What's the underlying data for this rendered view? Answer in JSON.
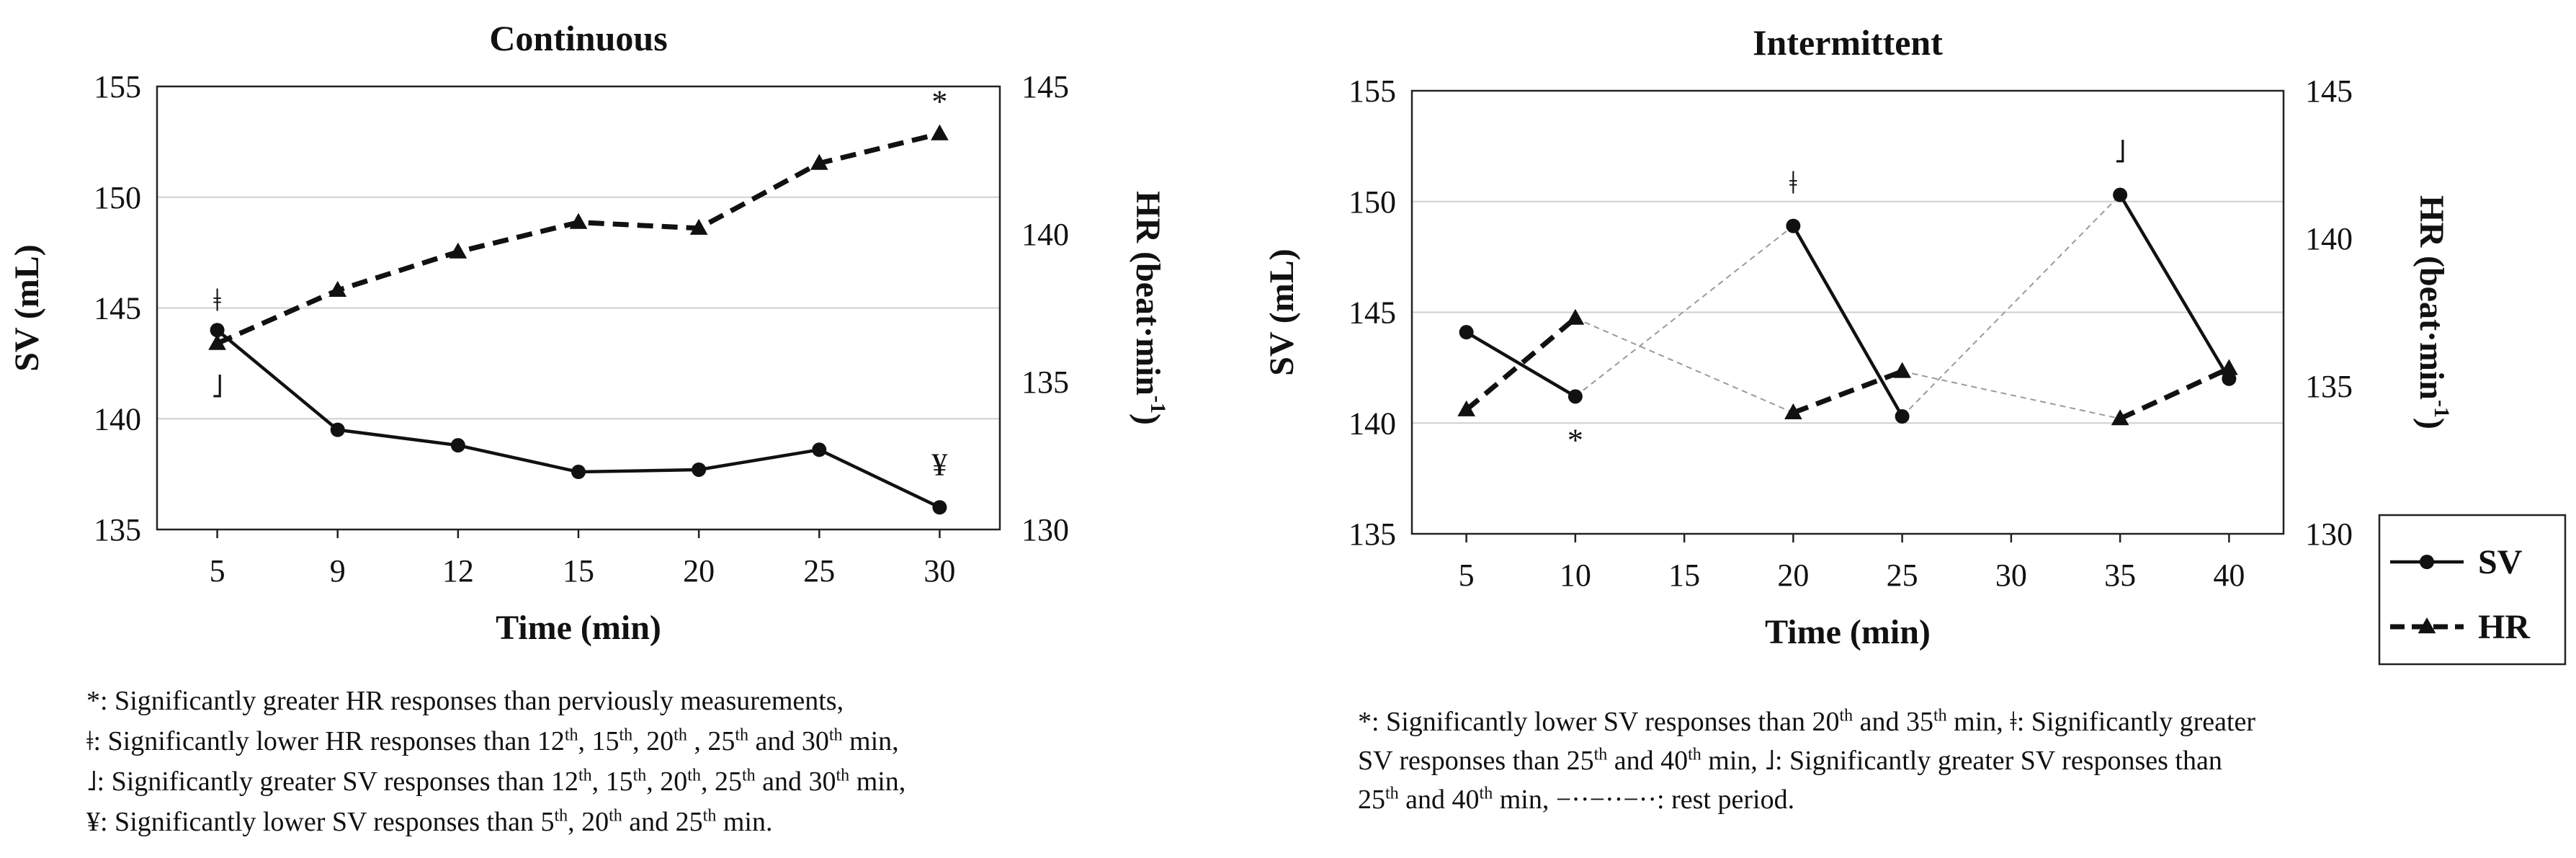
{
  "chart_data": [
    {
      "type": "line",
      "title": "Continuous",
      "xlabel": "Time (min)",
      "ylabel_left": "SV (mL)",
      "ylabel_right_main": "HR (beat·min",
      "ylabel_right_sup": "-1",
      "ylabel_right_end": ")",
      "categories": [
        "5",
        "9",
        "12",
        "15",
        "20",
        "25",
        "30"
      ],
      "ylim_left": [
        135,
        155
      ],
      "yticks_left": [
        135,
        140,
        145,
        150,
        155
      ],
      "ylim_right": [
        130,
        145
      ],
      "yticks_right": [
        130,
        135,
        140,
        145
      ],
      "grid": "horizontal",
      "series": [
        {
          "name": "SV",
          "axis": "left",
          "style": "solid",
          "marker": "circle",
          "values": [
            144.0,
            139.5,
            138.8,
            137.6,
            137.7,
            138.6,
            136.0
          ]
        },
        {
          "name": "HR",
          "axis": "right",
          "style": "dashed",
          "marker": "triangle",
          "values": [
            136.3,
            138.1,
            139.4,
            140.4,
            140.2,
            142.4,
            143.4
          ]
        }
      ],
      "annotations": [
        {
          "text": "ǂ",
          "category": "5",
          "series": "HR",
          "position": "above"
        },
        {
          "text": "˩",
          "category": "5",
          "series": "HR",
          "position": "below"
        },
        {
          "text": "*",
          "category": "30",
          "series": "HR",
          "position": "above"
        },
        {
          "text": "¥",
          "category": "30",
          "series": "SV",
          "position": "above"
        }
      ]
    },
    {
      "type": "line",
      "title": "Intermittent",
      "xlabel": "Time (min)",
      "ylabel_left": "SV (mL)",
      "ylabel_right_main": "HR (beat·min",
      "ylabel_right_sup": "-1",
      "ylabel_right_end": ")",
      "categories": [
        "5",
        "10",
        "15",
        "20",
        "25",
        "30",
        "35",
        "40"
      ],
      "x_values": [
        5,
        10,
        15,
        20,
        25,
        30,
        35,
        40
      ],
      "xlim": [
        2.5,
        42.5
      ],
      "ylim_left": [
        135,
        155
      ],
      "yticks_left": [
        135,
        140,
        145,
        150,
        155
      ],
      "ylim_right": [
        130,
        145
      ],
      "yticks_right": [
        130,
        135,
        140,
        145
      ],
      "grid": "horizontal",
      "series": [
        {
          "name": "SV",
          "axis": "left",
          "style": "solid",
          "marker": "circle",
          "segments": [
            [
              [
                5,
                144.1
              ],
              [
                10,
                141.2
              ]
            ],
            [
              [
                20,
                148.9
              ],
              [
                25,
                140.3
              ]
            ],
            [
              [
                35,
                150.3
              ],
              [
                40,
                142.0
              ]
            ]
          ]
        },
        {
          "name": "HR",
          "axis": "right",
          "style": "dashed",
          "marker": "triangle",
          "segments": [
            [
              [
                5,
                134.2
              ],
              [
                10,
                137.3
              ]
            ],
            [
              [
                20,
                134.1
              ],
              [
                25,
                135.5
              ]
            ],
            [
              [
                35,
                133.9
              ],
              [
                40,
                135.6
              ]
            ]
          ]
        }
      ],
      "rest_period_lines": [
        {
          "axis": "left",
          "points": [
            [
              10,
              141.2
            ],
            [
              20,
              148.9
            ]
          ]
        },
        {
          "axis": "left",
          "points": [
            [
              25,
              140.3
            ],
            [
              35,
              150.3
            ]
          ]
        },
        {
          "axis": "right",
          "points": [
            [
              10,
              137.3
            ],
            [
              20,
              134.1
            ]
          ]
        },
        {
          "axis": "right",
          "points": [
            [
              25,
              135.5
            ],
            [
              35,
              133.9
            ]
          ]
        }
      ],
      "annotations": [
        {
          "text": "*",
          "x": 10,
          "series": "SV",
          "position": "below"
        },
        {
          "text": "ǂ",
          "x": 20,
          "series": "SV",
          "position": "above"
        },
        {
          "text": "˩",
          "x": 35,
          "series": "SV",
          "position": "above"
        }
      ],
      "legend": {
        "placement": "right",
        "entries": [
          "SV",
          "HR"
        ]
      }
    }
  ],
  "notes_left": {
    "line1": "*: Significantly greater HR responses than perviously measurements,",
    "line2": [
      "ǂ: Significantly lower HR responses than 12",
      "th",
      ", 15",
      "th",
      ", 20",
      "th",
      " , 25",
      "th",
      " and 30",
      "th",
      " min,"
    ],
    "line3": [
      "˩: Significantly greater SV responses than 12",
      "th",
      ", 15",
      "th",
      ", 20",
      "th",
      ", 25",
      "th",
      " and 30",
      "th",
      " min,"
    ],
    "line4": [
      "¥: Significantly lower SV responses than 5",
      "th",
      ", 20",
      "th",
      " and  25",
      "th",
      " min."
    ]
  },
  "notes_right": {
    "line1": [
      "*: Significantly lower SV responses than 20",
      "th",
      " and 35",
      "th",
      " min, ǂ: Significantly greater"
    ],
    "line2": [
      "SV responses than 25",
      "th",
      " and 40",
      "th",
      " min, ˩: Significantly greater SV responses than"
    ],
    "line3": [
      "25",
      "th",
      " and 40",
      "th",
      " min, ",
      "−··−··−··: rest period."
    ]
  }
}
